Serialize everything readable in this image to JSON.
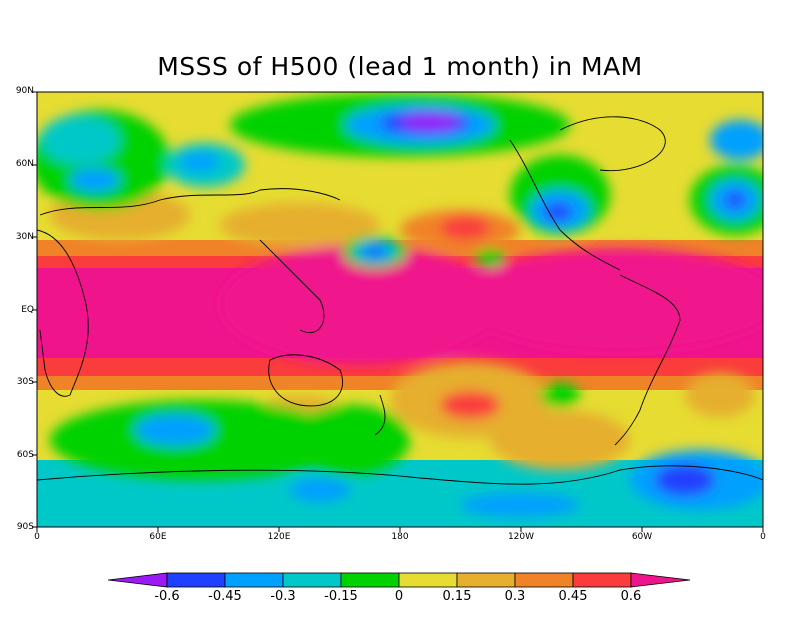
{
  "title": "MSSS of H500 (lead 1 month) in MAM",
  "lat_ticks": [
    "90N",
    "60N",
    "30N",
    "EQ",
    "30S",
    "60S",
    "90S"
  ],
  "lon_ticks": [
    "0",
    "60E",
    "120E",
    "180",
    "120W",
    "60W",
    "0"
  ],
  "colorbar": {
    "labels": [
      "-0.6",
      "-0.45",
      "-0.3",
      "-0.15",
      "0",
      "0.15",
      "0.3",
      "0.45",
      "0.6"
    ],
    "colors": [
      "#9b19f5",
      "#2040ff",
      "#00a0ff",
      "#00c8c8",
      "#00d200",
      "#e6dc32",
      "#e6af2d",
      "#f08228",
      "#fa3c3c",
      "#f0148c"
    ]
  }
}
